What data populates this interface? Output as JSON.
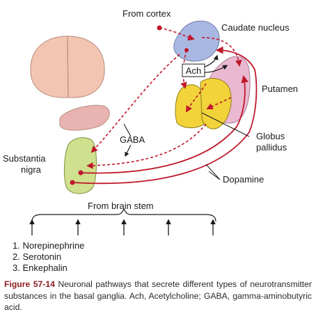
{
  "labels": {
    "from_cortex": "From cortex",
    "caudate_nucleus": "Caudate nucleus",
    "putamen": "Putamen",
    "ach": "Ach",
    "gaba": "GABA",
    "globus": "Globus",
    "pallidus": "pallidus",
    "substantia": "Substantia",
    "nigra": "nigra",
    "dopamine": "Dopamine",
    "from_brain_stem": "From brain stem"
  },
  "transmitters": [
    "1. Norepinephrine",
    "2. Serotonin",
    "3. Enkephalin"
  ],
  "caption": {
    "figure_number": "Figure 57-14",
    "text": " Neuronal pathways that secrete different types of neurotransmitter substances in the basal ganglia. Ach, Acetylcholine; GABA, gamma-aminobutyric acid."
  },
  "colors": {
    "pathway": "#c0172b",
    "caudate": "#a9b8e2",
    "putamen": "#eab9d1",
    "globus": "#f2d43a",
    "substantia": "#cfe08e",
    "cortex": "#f2c4b2",
    "thalamus": "#e8b3b0"
  }
}
